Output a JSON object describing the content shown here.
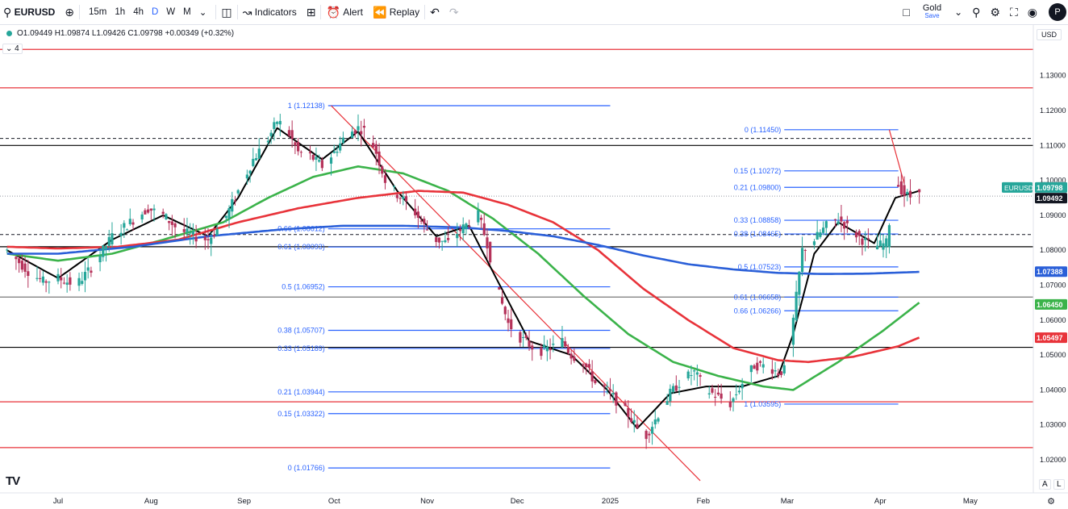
{
  "toolbar": {
    "symbol": "EURUSD",
    "intervals": [
      "15m",
      "1h",
      "4h",
      "D",
      "W",
      "M"
    ],
    "active_interval": "D",
    "indicators_label": "Indicators",
    "alert_label": "Alert",
    "replay_label": "Replay",
    "layout_name": "Gold",
    "layout_save": "Save",
    "avatar_letter": "P"
  },
  "legend": {
    "ohlc": "O1.09449 H1.09874 L1.09426 C1.09798 +0.00349 (+0.32%)",
    "collapse_count": "4"
  },
  "currency_label": "USD",
  "axis_buttons": [
    "A",
    "L"
  ],
  "chart_data": {
    "type": "candlestick",
    "symbol": "EURUSD",
    "timeframe": "D",
    "ylim": [
      1.0135,
      1.138
    ],
    "y_ticks": [
      "1.13000",
      "1.12000",
      "1.11000",
      "1.10000",
      "1.09000",
      "1.08000",
      "1.07000",
      "1.06000",
      "1.05000",
      "1.04000",
      "1.03000",
      "1.02000"
    ],
    "x_labels": [
      {
        "t": "Jul",
        "d": 0
      },
      {
        "t": "Aug",
        "d": 31
      },
      {
        "t": "Sep",
        "d": 62
      },
      {
        "t": "Oct",
        "d": 92
      },
      {
        "t": "Nov",
        "d": 123
      },
      {
        "t": "Dec",
        "d": 153
      },
      {
        "t": "2025",
        "d": 184
      },
      {
        "t": "Feb",
        "d": 215
      },
      {
        "t": "Mar",
        "d": 243
      },
      {
        "t": "Apr",
        "d": 274
      },
      {
        "t": "May",
        "d": 304
      }
    ],
    "close_path": [
      [
        -17,
        1.08
      ],
      [
        -10,
        1.074
      ],
      [
        -5,
        1.071
      ],
      [
        0,
        1.072
      ],
      [
        6,
        1.07
      ],
      [
        12,
        1.076
      ],
      [
        18,
        1.084
      ],
      [
        24,
        1.088
      ],
      [
        30,
        1.092
      ],
      [
        35,
        1.09
      ],
      [
        40,
        1.086
      ],
      [
        45,
        1.084
      ],
      [
        50,
        1.083
      ],
      [
        55,
        1.088
      ],
      [
        60,
        1.097
      ],
      [
        65,
        1.106
      ],
      [
        70,
        1.112
      ],
      [
        73,
        1.117
      ],
      [
        76,
        1.115
      ],
      [
        80,
        1.108
      ],
      [
        84,
        1.107
      ],
      [
        88,
        1.104
      ],
      [
        92,
        1.108
      ],
      [
        96,
        1.113
      ],
      [
        100,
        1.115
      ],
      [
        103,
        1.114
      ],
      [
        106,
        1.108
      ],
      [
        109,
        1.1
      ],
      [
        113,
        1.096
      ],
      [
        118,
        1.092
      ],
      [
        122,
        1.087
      ],
      [
        126,
        1.083
      ],
      [
        130,
        1.082
      ],
      [
        133,
        1.085
      ],
      [
        137,
        1.088
      ],
      [
        140,
        1.09
      ],
      [
        143,
        1.082
      ],
      [
        146,
        1.07
      ],
      [
        150,
        1.059
      ],
      [
        154,
        1.055
      ],
      [
        157,
        1.053
      ],
      [
        160,
        1.051
      ],
      [
        164,
        1.052
      ],
      [
        168,
        1.054
      ],
      [
        171,
        1.05
      ],
      [
        175,
        1.048
      ],
      [
        179,
        1.042
      ],
      [
        183,
        1.04
      ],
      [
        187,
        1.036
      ],
      [
        190,
        1.033
      ],
      [
        193,
        1.029
      ],
      [
        196,
        1.027
      ],
      [
        200,
        1.033
      ],
      [
        204,
        1.039
      ],
      [
        208,
        1.043
      ],
      [
        212,
        1.045
      ],
      [
        216,
        1.04
      ],
      [
        220,
        1.038
      ],
      [
        224,
        1.036
      ],
      [
        228,
        1.042
      ],
      [
        232,
        1.047
      ],
      [
        236,
        1.047
      ],
      [
        240,
        1.045
      ],
      [
        243,
        1.046
      ],
      [
        245,
        1.06
      ],
      [
        248,
        1.08
      ],
      [
        252,
        1.083
      ],
      [
        256,
        1.087
      ],
      [
        260,
        1.089
      ],
      [
        264,
        1.086
      ],
      [
        268,
        1.083
      ],
      [
        272,
        1.081
      ],
      [
        276,
        1.082
      ],
      [
        279,
        1.1
      ],
      [
        282,
        1.096
      ],
      [
        285,
        1.095
      ],
      [
        287,
        1.098
      ]
    ],
    "series": [
      {
        "name": "MA fast",
        "color": "#000000",
        "values": [
          [
            -17,
            1.08
          ],
          [
            0,
            1.072
          ],
          [
            18,
            1.083
          ],
          [
            35,
            1.09
          ],
          [
            50,
            1.084
          ],
          [
            60,
            1.095
          ],
          [
            73,
            1.115
          ],
          [
            88,
            1.106
          ],
          [
            100,
            1.114
          ],
          [
            113,
            1.097
          ],
          [
            126,
            1.084
          ],
          [
            137,
            1.087
          ],
          [
            146,
            1.072
          ],
          [
            157,
            1.054
          ],
          [
            171,
            1.05
          ],
          [
            183,
            1.04
          ],
          [
            193,
            1.029
          ],
          [
            204,
            1.039
          ],
          [
            216,
            1.041
          ],
          [
            228,
            1.041
          ],
          [
            240,
            1.044
          ],
          [
            245,
            1.056
          ],
          [
            252,
            1.079
          ],
          [
            260,
            1.088
          ],
          [
            272,
            1.082
          ],
          [
            279,
            1.095
          ],
          [
            287,
            1.097
          ]
        ]
      },
      {
        "name": "MA 50",
        "color": "#3bb34a",
        "values": [
          [
            -17,
            1.079
          ],
          [
            0,
            1.077
          ],
          [
            18,
            1.079
          ],
          [
            35,
            1.083
          ],
          [
            55,
            1.088
          ],
          [
            70,
            1.095
          ],
          [
            85,
            1.101
          ],
          [
            100,
            1.104
          ],
          [
            115,
            1.102
          ],
          [
            130,
            1.097
          ],
          [
            145,
            1.089
          ],
          [
            160,
            1.079
          ],
          [
            175,
            1.067
          ],
          [
            190,
            1.056
          ],
          [
            205,
            1.048
          ],
          [
            220,
            1.044
          ],
          [
            235,
            1.041
          ],
          [
            245,
            1.04
          ],
          [
            260,
            1.048
          ],
          [
            275,
            1.057
          ],
          [
            287,
            1.065
          ]
        ]
      },
      {
        "name": "MA 100",
        "color": "#e8333a",
        "values": [
          [
            -17,
            1.081
          ],
          [
            0,
            1.0805
          ],
          [
            20,
            1.081
          ],
          [
            40,
            1.083
          ],
          [
            60,
            1.088
          ],
          [
            80,
            1.092
          ],
          [
            100,
            1.095
          ],
          [
            120,
            1.097
          ],
          [
            135,
            1.0965
          ],
          [
            150,
            1.093
          ],
          [
            165,
            1.088
          ],
          [
            180,
            1.08
          ],
          [
            195,
            1.069
          ],
          [
            210,
            1.06
          ],
          [
            225,
            1.052
          ],
          [
            240,
            1.0485
          ],
          [
            250,
            1.048
          ],
          [
            265,
            1.0495
          ],
          [
            280,
            1.0525
          ],
          [
            287,
            1.055
          ]
        ]
      },
      {
        "name": "MA 200",
        "color": "#2a5fd8",
        "values": [
          [
            -17,
            1.079
          ],
          [
            0,
            1.079
          ],
          [
            25,
            1.081
          ],
          [
            50,
            1.084
          ],
          [
            75,
            1.086
          ],
          [
            95,
            1.087
          ],
          [
            115,
            1.087
          ],
          [
            135,
            1.0865
          ],
          [
            150,
            1.0855
          ],
          [
            165,
            1.084
          ],
          [
            180,
            1.0815
          ],
          [
            195,
            1.0785
          ],
          [
            210,
            1.076
          ],
          [
            225,
            1.0745
          ],
          [
            240,
            1.0735
          ],
          [
            255,
            1.0732
          ],
          [
            270,
            1.0733
          ],
          [
            287,
            1.0738
          ]
        ]
      }
    ],
    "fib_left": {
      "x_range": [
        90,
        184
      ],
      "levels": [
        {
          "label": "1 (1.12138)",
          "value": 1.12138
        },
        {
          "label": "0.66 (1.08612)",
          "value": 1.08612
        },
        {
          "label": "0.61 (1.08093)",
          "value": 1.08093
        },
        {
          "label": "0.5 (1.06952)",
          "value": 1.06952
        },
        {
          "label": "0.38 (1.05707)",
          "value": 1.05707
        },
        {
          "label": "0.33 (1.05189)",
          "value": 1.05189
        },
        {
          "label": "0.21 (1.03944)",
          "value": 1.03944
        },
        {
          "label": "0.15 (1.03322)",
          "value": 1.03322
        },
        {
          "label": "0 (1.01766)",
          "value": 1.01766
        }
      ]
    },
    "fib_right": {
      "x_range": [
        242,
        280
      ],
      "levels": [
        {
          "label": "0 (1.11450)",
          "value": 1.1145
        },
        {
          "label": "0.15 (1.10272)",
          "value": 1.10272
        },
        {
          "label": "0.21 (1.09800)",
          "value": 1.098
        },
        {
          "label": "0.33 (1.08858)",
          "value": 1.08858
        },
        {
          "label": "0.38 (1.08465)",
          "value": 1.08465
        },
        {
          "label": "0.5 (1.07523)",
          "value": 1.07523
        },
        {
          "label": "0.61 (1.06658)",
          "value": 1.06658
        },
        {
          "label": "0.66 (1.06266)",
          "value": 1.06266
        },
        {
          "label": "1 (1.03595)",
          "value": 1.03595
        }
      ]
    },
    "horizontal_lines": [
      {
        "value": 1.1375,
        "color": "#e8333a"
      },
      {
        "value": 1.1265,
        "color": "#e8333a"
      },
      {
        "value": 1.11,
        "color": "#000000"
      },
      {
        "value": 1.081,
        "color": "#000000"
      },
      {
        "value": 1.0666,
        "color": "#777777"
      },
      {
        "value": 1.0522,
        "color": "#000000"
      },
      {
        "value": 1.0366,
        "color": "#e8333a"
      },
      {
        "value": 1.0235,
        "color": "#e8333a"
      }
    ],
    "dashed_lines": [
      1.112,
      1.0845,
      1.0955
    ],
    "trendlines": [
      {
        "from": [
          91,
          1.1214
        ],
        "to": [
          214,
          1.014
        ],
        "color": "#e8333a"
      },
      {
        "from": [
          277,
          1.1145
        ],
        "to": [
          282,
          1.099
        ],
        "color": "#e8333a"
      }
    ],
    "price_labels": [
      {
        "text": "1.09798",
        "value": 1.09798,
        "bg": "#26a69a",
        "fg": "#ffffff",
        "tag": "EURUSD"
      },
      {
        "text": "1.09492",
        "value": 1.09492,
        "bg": "#131722",
        "fg": "#ffffff"
      },
      {
        "text": "1.07388",
        "value": 1.07388,
        "bg": "#2a5fd8",
        "fg": "#ffffff"
      },
      {
        "text": "1.06450",
        "value": 1.0645,
        "bg": "#3bb34a",
        "fg": "#ffffff"
      },
      {
        "text": "1.05497",
        "value": 1.05497,
        "bg": "#e8333a",
        "fg": "#ffffff"
      }
    ],
    "colors": {
      "up": "#26a69a",
      "down": "#b5325a",
      "fib": "#2962ff"
    }
  }
}
